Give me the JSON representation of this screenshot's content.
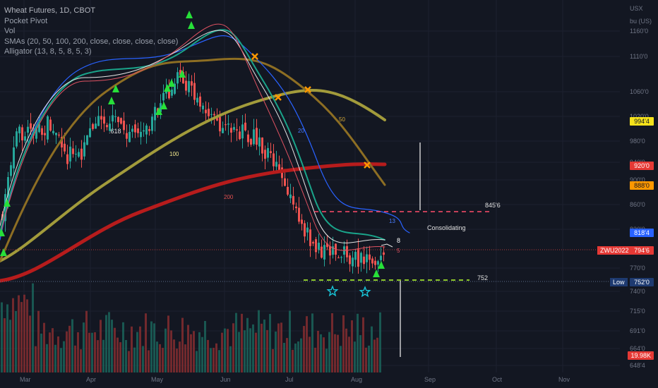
{
  "legend": {
    "title": "Wheat Futures, 1D, CBOT",
    "indicators": [
      "Pocket Pivot",
      "Vol",
      "SMAs (20, 50, 100, 200, close, close, close, close)",
      "Alligator (13, 8, 5, 8, 5, 3)"
    ]
  },
  "axis": {
    "currency": "USX",
    "unit": "bu (US)",
    "price_ticks": [
      "1160'0",
      "1110'0",
      "1060'0",
      "1020'0",
      "980'0",
      "940'0",
      "900'0",
      "860'0",
      "830'0",
      "770'0",
      "740'0",
      "715'0",
      "691'0",
      "664'0",
      "648'4"
    ],
    "months": [
      "Mar",
      "Apr",
      "May",
      "Jun",
      "Jul",
      "Aug",
      "Sep",
      "Oct",
      "Nov"
    ]
  },
  "price_tags": {
    "sma50": "994'4",
    "sma200": "920'0",
    "sma100": "888'0",
    "sma20": "818'4",
    "symbol": "ZWU2022",
    "last": "794'6",
    "low_label": "Low",
    "low": "752'0",
    "volume": "19.98K"
  },
  "annotations": {
    "fib": ".618",
    "sma100": "100",
    "sma200": "200",
    "sma50": "50",
    "sma20": "20",
    "resistance": "845'6",
    "support": "752",
    "consolidating": "Consolidating",
    "alligator_13": "13",
    "alligator_8": "8",
    "alligator_5": "5"
  },
  "colors": {
    "background": "#131722",
    "up": "#26a69a",
    "down": "#ef5350",
    "sma20": "#2962ff",
    "sma50": "#8d6e23",
    "sma100": "#a29b3b",
    "sma200": "#b71c1c",
    "resistance": "#ff4d6a",
    "support": "#b5ff2d",
    "pivot": "#27e039",
    "cross": "#ff9800",
    "star": "#18c5d8"
  },
  "chart_data": {
    "type": "candlestick",
    "ylim": [
      640,
      1190
    ],
    "candles_sampled": [
      {
        "date": "Mar 1",
        "close": 880
      },
      {
        "date": "Mar 8",
        "close": 1060
      },
      {
        "date": "Mar 15",
        "close": 1050
      },
      {
        "date": "Mar 22",
        "close": 1080
      },
      {
        "date": "Mar 29",
        "close": 1005
      },
      {
        "date": "Apr 5",
        "close": 1015
      },
      {
        "date": "Apr 12",
        "close": 1085
      },
      {
        "date": "Apr 19",
        "close": 1080
      },
      {
        "date": "Apr 26",
        "close": 1045
      },
      {
        "date": "May 3",
        "close": 1060
      },
      {
        "date": "May 10",
        "close": 1120
      },
      {
        "date": "May 17",
        "close": 1180
      },
      {
        "date": "May 24",
        "close": 1140
      },
      {
        "date": "May 31",
        "close": 1100
      },
      {
        "date": "Jun 7",
        "close": 1060
      },
      {
        "date": "Jun 14",
        "close": 1060
      },
      {
        "date": "Jun 21",
        "close": 1040
      },
      {
        "date": "Jun 28",
        "close": 990
      },
      {
        "date": "Jul 5",
        "close": 915
      },
      {
        "date": "Jul 12",
        "close": 840
      },
      {
        "date": "Jul 19",
        "close": 790
      },
      {
        "date": "Jul 26",
        "close": 800
      },
      {
        "date": "Aug 2",
        "close": 775
      },
      {
        "date": "Aug 9",
        "close": 770
      },
      {
        "date": "Aug 12",
        "close": 794.75
      }
    ],
    "levels": {
      "resistance": 845.75,
      "support": 752
    }
  }
}
